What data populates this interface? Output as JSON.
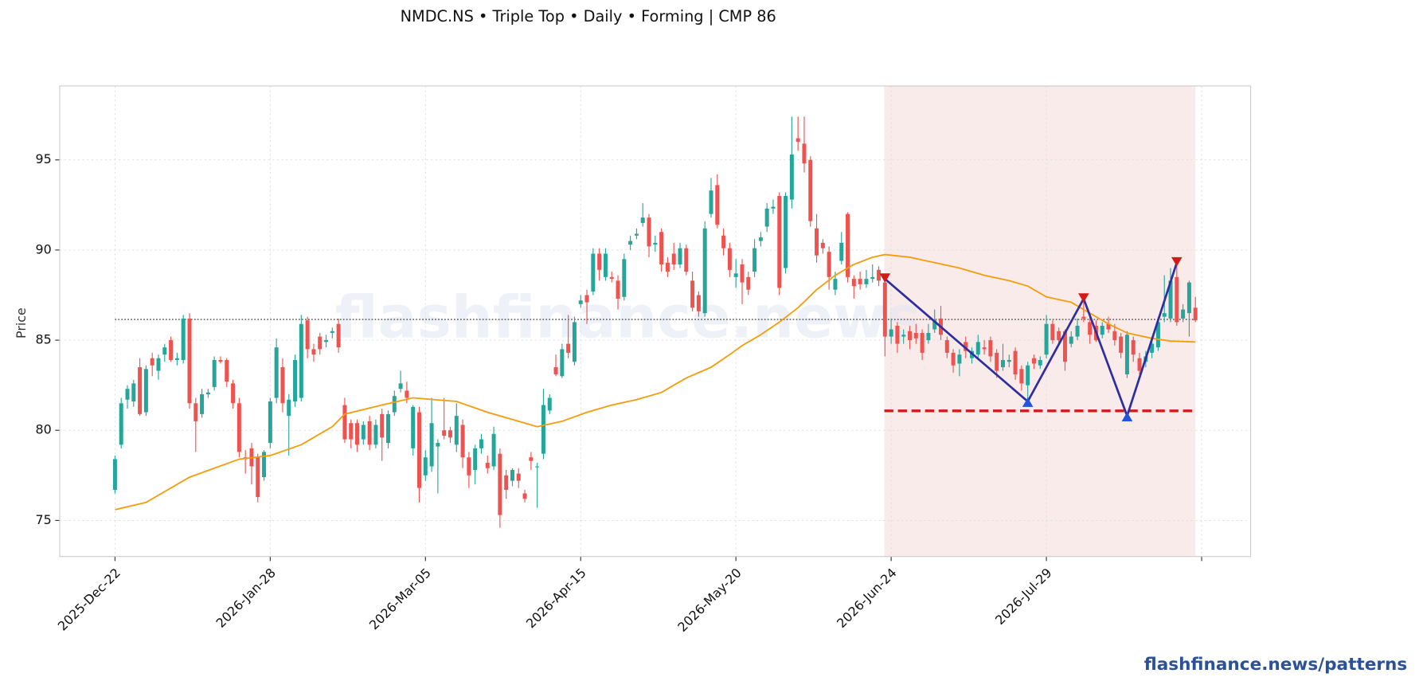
{
  "chart_data": {
    "type": "candlestick",
    "title": "NMDC.NS  •  Triple Top  •  Daily  •  Forming  |  CMP 86",
    "y_label": "Price",
    "watermark": "flashfinance.news",
    "footer": "flashfinance.news/patterns",
    "up_color": "#26a69a",
    "down_color": "#ef5350",
    "ma_color": "#f59c0b",
    "pattern_color": "#2e2ea0",
    "peak_color": "#d11a1a",
    "trough_color": "#2255dd",
    "neckline_color": "#d11a1a",
    "zone_color": "#f8e4e4",
    "grid": true,
    "xlim": [
      -8.9,
      182.9
    ],
    "ylim": [
      73.0,
      99.1
    ],
    "yticks": [
      75,
      80,
      85,
      90,
      95
    ],
    "xticks": [
      {
        "value": 0,
        "label": "2025-Dec-22"
      },
      {
        "value": 25,
        "label": "2026-Jan-28"
      },
      {
        "value": 50,
        "label": "2026-Mar-05"
      },
      {
        "value": 75,
        "label": "2026-Apr-15"
      },
      {
        "value": 100,
        "label": "2026-May-20"
      },
      {
        "value": 125,
        "label": "2026-Jun-24"
      },
      {
        "value": 150,
        "label": "2026-Jul-29"
      },
      {
        "value": 175
      }
    ],
    "candles": [
      [
        76.7,
        78.6,
        76.5,
        78.4
      ],
      [
        79.2,
        81.8,
        79.0,
        81.5
      ],
      [
        81.7,
        82.5,
        81.2,
        82.3
      ],
      [
        81.6,
        82.8,
        81.3,
        82.6
      ],
      [
        83.5,
        84.0,
        80.8,
        80.9
      ],
      [
        81.0,
        83.6,
        80.8,
        83.4
      ],
      [
        84.0,
        84.3,
        83.0,
        83.6
      ],
      [
        83.3,
        84.2,
        82.8,
        84.0
      ],
      [
        84.2,
        84.8,
        83.8,
        84.6
      ],
      [
        85.0,
        85.2,
        83.8,
        83.9
      ],
      [
        83.9,
        84.3,
        83.6,
        84.0
      ],
      [
        83.9,
        86.4,
        83.7,
        86.2
      ],
      [
        86.2,
        86.5,
        81.2,
        81.5
      ],
      [
        81.5,
        81.8,
        78.8,
        80.5
      ],
      [
        80.9,
        82.3,
        80.7,
        82.0
      ],
      [
        82.0,
        82.3,
        81.8,
        82.1
      ],
      [
        82.4,
        84.1,
        82.2,
        83.9
      ],
      [
        83.9,
        84.1,
        83.7,
        83.8
      ],
      [
        83.9,
        84.0,
        82.4,
        82.7
      ],
      [
        82.6,
        82.8,
        81.2,
        81.5
      ],
      [
        81.5,
        81.8,
        78.5,
        78.8
      ],
      [
        78.5,
        78.9,
        77.6,
        78.4
      ],
      [
        79.0,
        79.3,
        77.0,
        78.0
      ],
      [
        78.5,
        78.7,
        76.0,
        76.3
      ],
      [
        77.4,
        78.9,
        77.2,
        78.8
      ],
      [
        79.3,
        81.8,
        79.0,
        81.6
      ],
      [
        81.8,
        85.1,
        81.5,
        84.6
      ],
      [
        83.5,
        84.0,
        81.0,
        81.5
      ],
      [
        80.8,
        82.0,
        78.6,
        81.7
      ],
      [
        81.6,
        84.2,
        81.3,
        83.9
      ],
      [
        81.8,
        86.4,
        81.6,
        85.9
      ],
      [
        86.1,
        86.3,
        84.0,
        84.5
      ],
      [
        84.5,
        84.8,
        83.8,
        84.2
      ],
      [
        85.2,
        85.4,
        84.2,
        84.5
      ],
      [
        84.9,
        85.3,
        84.6,
        85.0
      ],
      [
        85.4,
        85.7,
        85.1,
        85.5
      ],
      [
        85.9,
        86.2,
        84.3,
        84.6
      ],
      [
        81.4,
        81.8,
        79.3,
        79.5
      ],
      [
        80.4,
        80.6,
        79.0,
        79.5
      ],
      [
        80.4,
        80.6,
        78.8,
        79.2
      ],
      [
        79.5,
        80.5,
        79.2,
        80.3
      ],
      [
        80.5,
        80.8,
        78.9,
        79.2
      ],
      [
        79.2,
        80.6,
        79.0,
        80.3
      ],
      [
        80.9,
        81.2,
        78.3,
        79.6
      ],
      [
        79.3,
        81.1,
        79.0,
        80.9
      ],
      [
        81.0,
        82.2,
        80.8,
        81.9
      ],
      [
        82.3,
        83.3,
        82.1,
        82.6
      ],
      [
        82.2,
        82.7,
        81.5,
        81.8
      ],
      [
        79.0,
        81.4,
        78.6,
        81.3
      ],
      [
        81.0,
        81.3,
        76.0,
        76.8
      ],
      [
        77.5,
        78.9,
        77.2,
        78.5
      ],
      [
        78.0,
        81.8,
        77.7,
        80.4
      ],
      [
        79.1,
        79.5,
        76.5,
        79.3
      ],
      [
        80.0,
        81.8,
        79.5,
        79.7
      ],
      [
        80.0,
        80.2,
        79.3,
        79.6
      ],
      [
        79.2,
        81.5,
        78.8,
        80.8
      ],
      [
        80.3,
        80.6,
        77.9,
        78.5
      ],
      [
        78.5,
        78.8,
        76.8,
        77.5
      ],
      [
        77.8,
        79.2,
        77.0,
        79.0
      ],
      [
        79.0,
        79.8,
        78.7,
        79.5
      ],
      [
        78.2,
        78.6,
        77.6,
        77.9
      ],
      [
        78.0,
        80.2,
        77.8,
        79.8
      ],
      [
        78.7,
        79.0,
        74.6,
        75.3
      ],
      [
        77.5,
        77.8,
        76.2,
        76.7
      ],
      [
        77.2,
        77.9,
        76.9,
        77.8
      ],
      [
        77.6,
        77.9,
        76.8,
        77.2
      ],
      [
        76.5,
        76.7,
        76.0,
        76.2
      ],
      [
        78.5,
        78.8,
        77.8,
        78.3
      ],
      [
        78.0,
        78.2,
        75.7,
        78.0
      ],
      [
        78.7,
        82.3,
        78.4,
        81.4
      ],
      [
        81.1,
        82.0,
        80.9,
        81.8
      ],
      [
        83.5,
        84.2,
        83.0,
        83.1
      ],
      [
        83.0,
        84.8,
        82.9,
        84.5
      ],
      [
        84.8,
        86.4,
        84.0,
        84.3
      ],
      [
        83.8,
        86.3,
        83.6,
        86.0
      ],
      [
        87.0,
        87.5,
        86.8,
        87.2
      ],
      [
        87.5,
        87.8,
        85.9,
        87.1
      ],
      [
        87.7,
        90.1,
        87.5,
        89.8
      ],
      [
        89.8,
        90.1,
        88.3,
        88.9
      ],
      [
        88.5,
        90.1,
        88.3,
        89.8
      ],
      [
        88.5,
        88.8,
        88.2,
        88.4
      ],
      [
        88.3,
        88.6,
        86.7,
        87.3
      ],
      [
        87.4,
        89.8,
        87.2,
        89.5
      ],
      [
        90.3,
        90.8,
        90.0,
        90.5
      ],
      [
        90.8,
        91.2,
        90.6,
        90.9
      ],
      [
        91.5,
        92.6,
        91.3,
        91.8
      ],
      [
        91.8,
        92.0,
        89.6,
        90.2
      ],
      [
        90.3,
        90.8,
        89.9,
        90.4
      ],
      [
        91.0,
        91.2,
        88.8,
        89.2
      ],
      [
        89.3,
        89.6,
        88.5,
        88.8
      ],
      [
        89.8,
        90.4,
        88.9,
        89.2
      ],
      [
        89.2,
        90.4,
        89.0,
        90.1
      ],
      [
        90.1,
        90.3,
        88.6,
        88.8
      ],
      [
        88.3,
        88.8,
        86.6,
        86.8
      ],
      [
        87.5,
        87.7,
        86.3,
        86.6
      ],
      [
        86.5,
        91.6,
        86.3,
        91.2
      ],
      [
        92.0,
        94.0,
        91.8,
        93.3
      ],
      [
        93.6,
        94.2,
        91.2,
        91.4
      ],
      [
        90.8,
        91.2,
        89.7,
        90.1
      ],
      [
        90.1,
        90.4,
        88.5,
        88.9
      ],
      [
        88.5,
        89.5,
        87.9,
        88.7
      ],
      [
        89.2,
        89.5,
        87.0,
        88.2
      ],
      [
        88.5,
        88.8,
        87.5,
        87.8
      ],
      [
        88.8,
        90.6,
        88.5,
        90.1
      ],
      [
        90.5,
        91.0,
        90.2,
        90.7
      ],
      [
        91.3,
        92.6,
        91.0,
        92.3
      ],
      [
        92.3,
        92.8,
        92.0,
        92.4
      ],
      [
        93.0,
        93.2,
        87.5,
        87.9
      ],
      [
        89.0,
        93.2,
        88.7,
        93.0
      ],
      [
        92.8,
        97.4,
        92.3,
        95.3
      ],
      [
        96.2,
        97.4,
        95.5,
        96.0
      ],
      [
        95.9,
        97.4,
        94.3,
        94.8
      ],
      [
        95.0,
        95.2,
        91.3,
        91.6
      ],
      [
        91.2,
        92.0,
        89.3,
        89.7
      ],
      [
        90.4,
        90.6,
        89.8,
        90.1
      ],
      [
        89.9,
        90.2,
        87.8,
        88.5
      ],
      [
        87.8,
        88.8,
        87.5,
        88.4
      ],
      [
        89.4,
        91.0,
        89.2,
        90.4
      ],
      [
        92.0,
        92.1,
        88.2,
        88.5
      ],
      [
        88.4,
        88.6,
        87.3,
        88.0
      ],
      [
        88.4,
        88.8,
        87.8,
        88.1
      ],
      [
        88.1,
        88.9,
        87.9,
        88.4
      ],
      [
        88.4,
        89.2,
        88.2,
        88.5
      ],
      [
        88.9,
        89.1,
        88.0,
        88.3
      ],
      [
        88.2,
        88.4,
        84.1,
        85.2
      ],
      [
        85.2,
        86.2,
        84.8,
        85.6
      ],
      [
        85.8,
        86.0,
        84.3,
        84.8
      ],
      [
        85.2,
        85.6,
        84.8,
        85.3
      ],
      [
        85.5,
        85.8,
        84.5,
        85.0
      ],
      [
        85.4,
        85.9,
        84.8,
        85.1
      ],
      [
        85.4,
        85.6,
        83.9,
        84.3
      ],
      [
        85.0,
        85.9,
        84.8,
        85.4
      ],
      [
        85.6,
        86.7,
        85.4,
        86.1
      ],
      [
        86.2,
        86.9,
        85.0,
        85.3
      ],
      [
        85.0,
        85.2,
        84.0,
        84.3
      ],
      [
        84.3,
        84.5,
        83.2,
        83.6
      ],
      [
        83.7,
        84.5,
        83.0,
        84.2
      ],
      [
        84.9,
        85.2,
        84.0,
        84.4
      ],
      [
        84.0,
        84.6,
        83.7,
        84.4
      ],
      [
        84.2,
        85.3,
        84.0,
        84.9
      ],
      [
        84.6,
        85.0,
        84.2,
        84.5
      ],
      [
        85.0,
        85.2,
        83.8,
        84.1
      ],
      [
        84.3,
        84.5,
        82.9,
        83.3
      ],
      [
        83.5,
        84.8,
        83.3,
        83.9
      ],
      [
        83.8,
        84.2,
        83.5,
        83.9
      ],
      [
        84.4,
        84.6,
        82.8,
        83.1
      ],
      [
        83.4,
        83.6,
        82.2,
        82.6
      ],
      [
        82.5,
        83.8,
        81.7,
        83.6
      ],
      [
        84.0,
        84.2,
        83.4,
        83.7
      ],
      [
        83.6,
        84.1,
        83.4,
        83.9
      ],
      [
        84.2,
        86.4,
        84.0,
        85.9
      ],
      [
        85.9,
        86.1,
        84.8,
        85.0
      ],
      [
        85.5,
        85.7,
        84.7,
        85.0
      ],
      [
        85.5,
        85.6,
        83.3,
        83.8
      ],
      [
        84.8,
        85.5,
        84.6,
        85.2
      ],
      [
        85.2,
        86.2,
        85.0,
        85.8
      ],
      [
        86.3,
        87.5,
        86.0,
        86.2
      ],
      [
        86.0,
        86.4,
        84.8,
        85.3
      ],
      [
        85.8,
        86.1,
        84.9,
        85.0
      ],
      [
        85.3,
        86.0,
        85.1,
        85.8
      ],
      [
        85.9,
        86.3,
        85.4,
        85.6
      ],
      [
        85.5,
        85.9,
        84.7,
        85.0
      ],
      [
        85.2,
        85.4,
        84.0,
        84.3
      ],
      [
        83.1,
        85.5,
        82.9,
        85.3
      ],
      [
        85.0,
        85.2,
        83.8,
        84.2
      ],
      [
        84.0,
        84.3,
        83.1,
        83.3
      ],
      [
        83.8,
        84.4,
        83.5,
        84.1
      ],
      [
        84.3,
        85.1,
        84.0,
        84.8
      ],
      [
        84.6,
        86.3,
        84.4,
        86.0
      ],
      [
        86.3,
        88.6,
        86.0,
        86.5
      ],
      [
        86.2,
        89.0,
        86.0,
        88.3
      ],
      [
        88.5,
        89.2,
        85.8,
        86.0
      ],
      [
        86.2,
        87.0,
        86.0,
        86.7
      ],
      [
        86.5,
        88.3,
        85.2,
        88.2
      ],
      [
        86.8,
        87.4,
        86.0,
        86.1
      ]
    ],
    "ma": {
      "x": [
        0,
        5,
        12,
        20,
        25,
        30,
        35,
        37,
        43,
        48,
        55,
        60,
        64,
        68,
        72,
        76,
        80,
        84,
        88,
        92,
        96,
        99,
        101,
        104,
        107,
        110,
        113,
        116,
        119,
        122,
        124,
        128,
        132,
        136,
        140,
        144,
        147,
        150,
        154,
        157,
        160,
        163,
        167,
        170,
        174
      ],
      "values": [
        75.6,
        76.0,
        77.4,
        78.4,
        78.6,
        79.2,
        80.2,
        80.9,
        81.4,
        81.8,
        81.6,
        81.0,
        80.6,
        80.2,
        80.5,
        81.0,
        81.4,
        81.7,
        82.1,
        82.9,
        83.5,
        84.2,
        84.7,
        85.3,
        86.0,
        86.8,
        87.8,
        88.6,
        89.2,
        89.6,
        89.75,
        89.6,
        89.3,
        89.0,
        88.6,
        88.3,
        88.0,
        87.4,
        87.1,
        86.5,
        85.9,
        85.4,
        85.1,
        84.95,
        84.9
      ]
    },
    "resistance": 86.15,
    "neckline": 81.08,
    "zone": [
      123.9,
      174
    ],
    "pattern": {
      "x": [
        124,
        147,
        156,
        163,
        171
      ],
      "values": [
        88.4,
        81.6,
        87.3,
        80.8,
        89.3
      ]
    }
  }
}
